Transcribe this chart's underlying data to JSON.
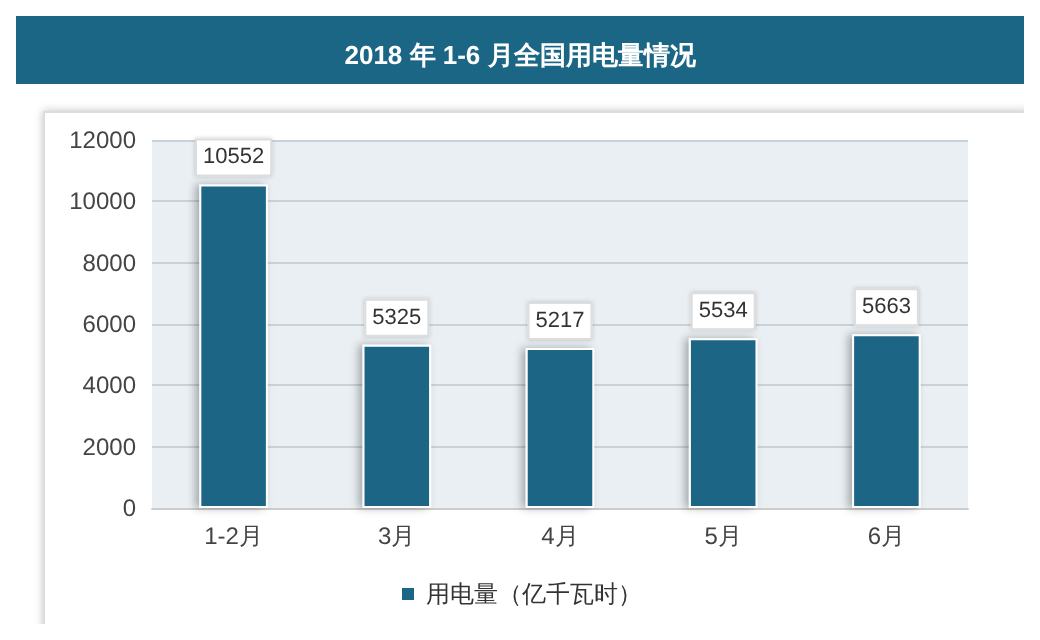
{
  "chart_data": {
    "type": "bar",
    "title": "2018 年 1-6 月全国用电量情况",
    "categories": [
      "1-2月",
      "3月",
      "4月",
      "5月",
      "6月"
    ],
    "series": [
      {
        "name": "用电量（亿千瓦时）",
        "color": "#1b6585",
        "values": [
          10552,
          5325,
          5217,
          5534,
          5663
        ]
      }
    ],
    "ylim": [
      0,
      12000
    ],
    "yticks": [
      0,
      2000,
      4000,
      6000,
      8000,
      10000,
      12000
    ],
    "grid": "y",
    "legend": "bottom",
    "data_labels": true
  }
}
